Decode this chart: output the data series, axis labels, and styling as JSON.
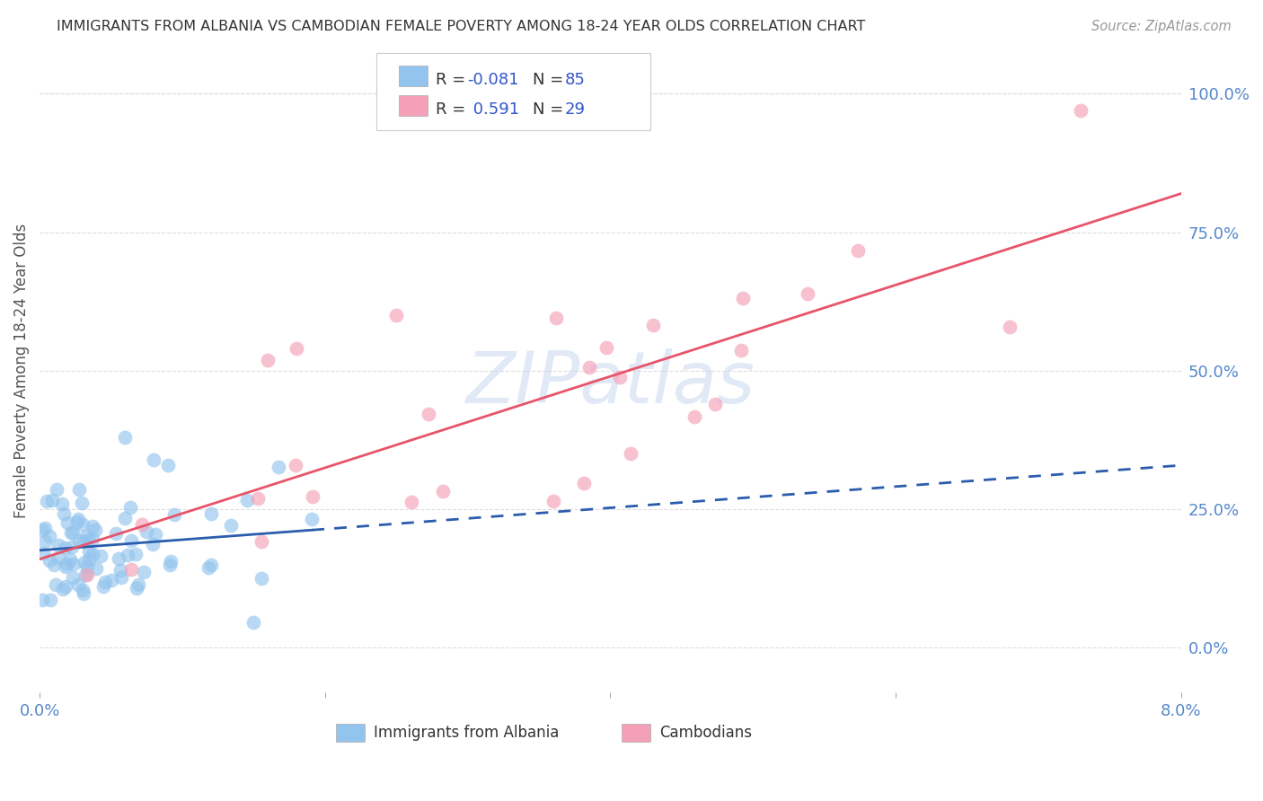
{
  "title": "IMMIGRANTS FROM ALBANIA VS CAMBODIAN FEMALE POVERTY AMONG 18-24 YEAR OLDS CORRELATION CHART",
  "source": "Source: ZipAtlas.com",
  "ylabel": "Female Poverty Among 18-24 Year Olds",
  "ylabel_ticks": [
    "100.0%",
    "75.0%",
    "50.0%",
    "25.0%",
    "0.0%"
  ],
  "ylabel_values": [
    1.0,
    0.75,
    0.5,
    0.25,
    0.0
  ],
  "xlim": [
    0.0,
    0.08
  ],
  "ylim": [
    -0.08,
    1.08
  ],
  "color_blue": "#93C4EE",
  "color_pink": "#F4A0B8",
  "color_blue_line": "#2B5DAD",
  "color_pink_line": "#E8546A",
  "color_title": "#333333",
  "color_source": "#999999",
  "color_legend_r": "#333333",
  "color_legend_n": "#3355CC",
  "watermark": "ZIPatlas",
  "legend_label_1": "Immigrants from Albania",
  "legend_label_2": "Cambodians",
  "grid_color": "#dddddd"
}
